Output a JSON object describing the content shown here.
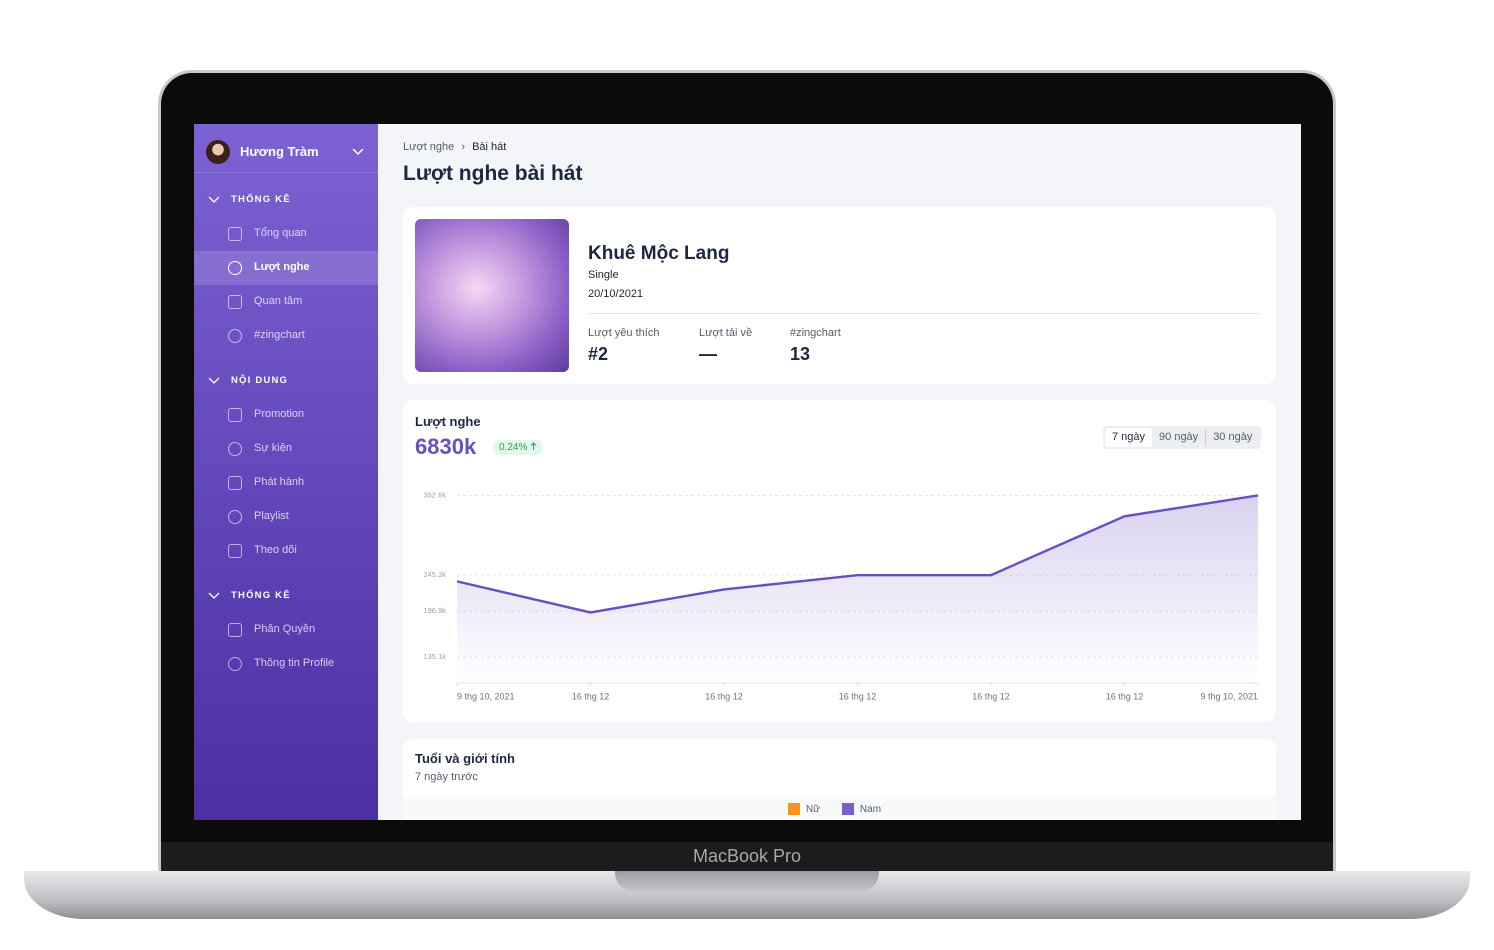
{
  "device_label": "MacBook Pro",
  "sidebar": {
    "user": "Hương Tràm",
    "sections": [
      {
        "title": "THỐNG KÊ",
        "items": [
          "Tổng quan",
          "Lượt nghe",
          "Quan tâm",
          "#zingchart"
        ]
      },
      {
        "title": "NỘI DUNG",
        "items": [
          "Promotion",
          "Sự kiện",
          "Phát hành",
          "Playlist",
          "Theo dõi"
        ]
      },
      {
        "title": "THỐNG KÊ",
        "items": [
          "Phân Quyền",
          "Thông tin Profile"
        ]
      }
    ]
  },
  "breadcrumb": [
    "Lượt nghe",
    "Bài hát"
  ],
  "page_title": "Lượt nghe bài hát",
  "song": {
    "name": "Khuê Mộc Lang",
    "kind": "Single",
    "date": "20/10/2021",
    "stats": [
      {
        "label": "Lượt yêu thích",
        "value": "#2"
      },
      {
        "label": "Lượt tải về",
        "value": "—"
      },
      {
        "label": "#zingchart",
        "value": "13"
      }
    ]
  },
  "plays_card": {
    "title": "Lượt nghe",
    "total": "6830k",
    "change": "0.24%",
    "ranges": [
      "7 ngày",
      "90 ngày",
      "30 ngày"
    ]
  },
  "chart_data": {
    "type": "line",
    "categories": [
      "9 thg 10, 2021",
      "16 thg 12",
      "16 thg 12",
      "16 thg 12",
      "16 thg 12",
      "16 thg 12",
      "9 thg 10, 2021"
    ],
    "values": [
      236.9,
      195,
      226,
      245.3,
      245.3,
      324.6,
      352.6
    ],
    "color": "#6a4fc0",
    "ylim": [
      100,
      360
    ],
    "yticks": [
      {
        "value": 352.6,
        "label": "352.6k"
      },
      {
        "value": 245.3,
        "label": "245.3k"
      },
      {
        "value": 196.9,
        "label": "196.9k"
      },
      {
        "value": 135.1,
        "label": "135.1k"
      }
    ],
    "grid": true
  },
  "demographics": {
    "title": "Tuổi và giới tính",
    "subtitle": "7 ngày trước",
    "legend": [
      {
        "name": "Nữ",
        "color": "#f7931e"
      },
      {
        "name": "Nam",
        "color": "#7a5fc9"
      }
    ]
  }
}
